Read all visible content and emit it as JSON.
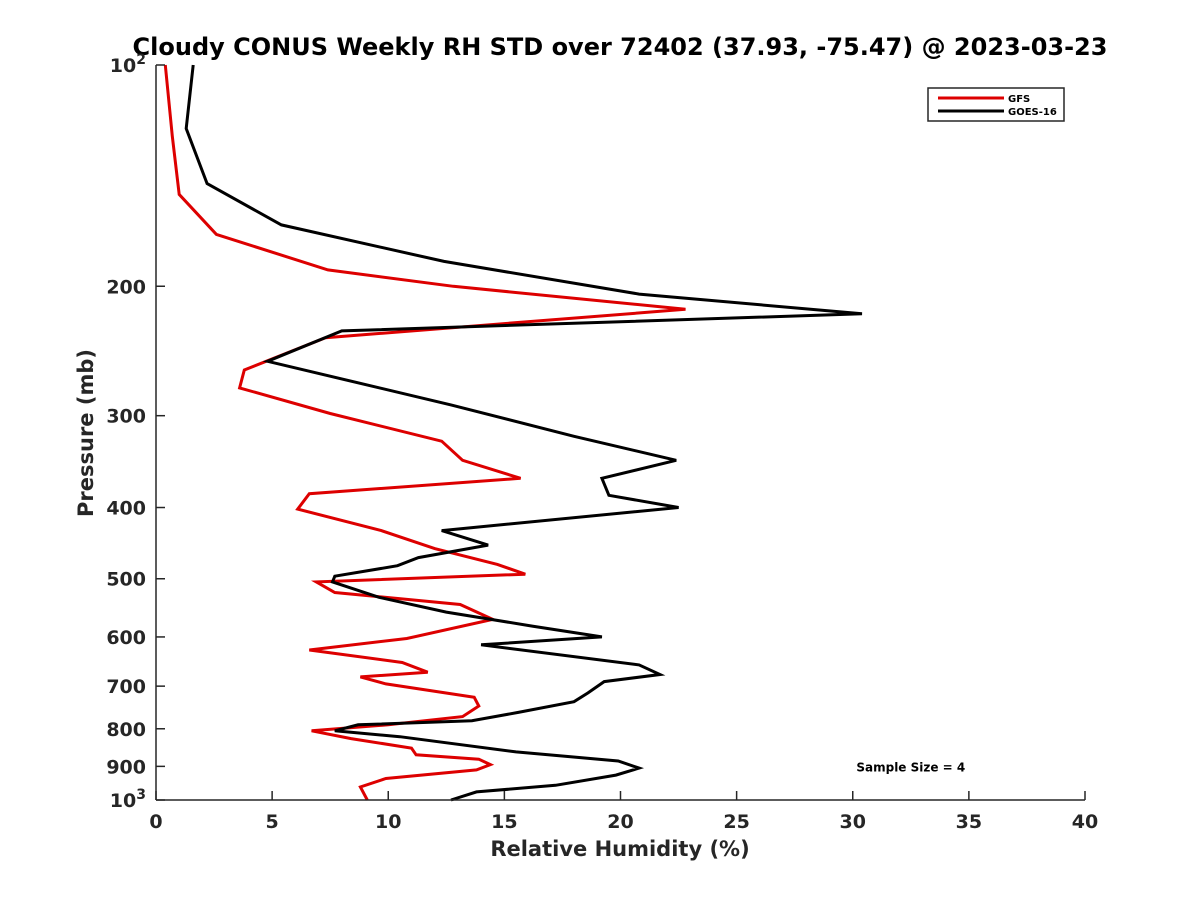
{
  "chart_data": {
    "type": "line",
    "title": "Cloudy CONUS Weekly RH STD over 72402 (37.93, -75.47) @ 2023-03-23",
    "xlabel": "Relative Humidity (%)",
    "ylabel": "Pressure (mb)",
    "xlim": [
      0,
      40
    ],
    "ylim": [
      100,
      1000
    ],
    "y_scale": "log",
    "y_reversed": true,
    "x_ticks": [
      0,
      5,
      10,
      15,
      20,
      25,
      30,
      35,
      40
    ],
    "x_tick_labels": [
      "0",
      "5",
      "10",
      "15",
      "20",
      "25",
      "30",
      "35",
      "40"
    ],
    "y_ticks": [
      100,
      200,
      300,
      400,
      500,
      600,
      700,
      800,
      900,
      1000
    ],
    "y_tick_labels": [
      "10^2",
      "200",
      "300",
      "400",
      "500",
      "600",
      "700",
      "800",
      "900",
      "10^3"
    ],
    "grid": false,
    "legend": "top-right",
    "series": [
      {
        "name": "GFS",
        "color": "#dd0000",
        "x": [
          0.4,
          0.7,
          1.0,
          2.6,
          7.4,
          12.8,
          22.8,
          7.3,
          3.8,
          3.6,
          7.5,
          12.3,
          13.2,
          15.7,
          6.6,
          6.1,
          9.7,
          12.0,
          14.7,
          15.9,
          6.9,
          7.7,
          13.1,
          14.5,
          10.8,
          6.6,
          10.6,
          11.7,
          8.8,
          9.9,
          13.7,
          13.9,
          13.2,
          10.0,
          6.7,
          8.4,
          11.0,
          11.2,
          13.9,
          14.4,
          13.8,
          9.9,
          8.8,
          9.1
        ],
        "y": [
          100,
          125,
          150,
          170,
          190,
          200,
          215,
          235,
          260,
          275,
          298,
          325,
          345,
          365,
          383,
          402,
          430,
          455,
          478,
          493,
          505,
          522,
          542,
          568,
          603,
          625,
          650,
          670,
          680,
          695,
          725,
          745,
          770,
          790,
          805,
          825,
          850,
          868,
          880,
          895,
          910,
          935,
          960,
          1000
        ],
        "style": "solid"
      },
      {
        "name": "GOES-16",
        "color": "#000000",
        "x": [
          1.6,
          1.3,
          2.2,
          5.4,
          12.4,
          20.8,
          30.4,
          8.0,
          4.8,
          12.7,
          18.0,
          22.4,
          19.2,
          19.5,
          22.5,
          12.3,
          14.3,
          11.3,
          10.4,
          7.7,
          7.6,
          9.6,
          12.5,
          16.2,
          19.2,
          14.0,
          20.8,
          21.7,
          19.3,
          18.6,
          18.0,
          15.6,
          13.6,
          8.7,
          7.7,
          10.5,
          15.5,
          19.9,
          20.8,
          19.8,
          17.2,
          13.8,
          12.7
        ],
        "y": [
          100,
          122,
          145,
          165,
          185,
          205,
          218,
          230,
          253,
          290,
          320,
          345,
          365,
          385,
          400,
          430,
          450,
          468,
          480,
          496,
          505,
          530,
          555,
          580,
          600,
          615,
          655,
          675,
          690,
          715,
          735,
          760,
          780,
          790,
          805,
          820,
          860,
          885,
          905,
          925,
          955,
          975,
          1000
        ],
        "style": "solid"
      }
    ],
    "annotations": [
      {
        "text": "Sample Size = 4",
        "x": 32.5,
        "y": 900
      }
    ]
  }
}
